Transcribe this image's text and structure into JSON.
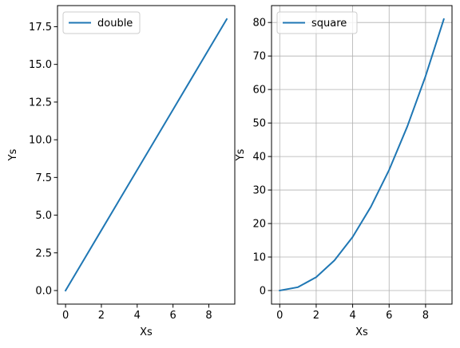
{
  "chart_data": [
    {
      "type": "line",
      "xlabel": "Xs",
      "ylabel": "Ys",
      "x": [
        0,
        1,
        2,
        3,
        4,
        5,
        6,
        7,
        8,
        9
      ],
      "series": [
        {
          "name": "double",
          "values": [
            0,
            2,
            4,
            6,
            8,
            10,
            12,
            14,
            16,
            18
          ],
          "color": "#1f77b4"
        }
      ],
      "xlim": [
        -0.45,
        9.45
      ],
      "ylim": [
        -0.9,
        18.9
      ],
      "xticks": [
        0,
        2,
        4,
        6,
        8
      ],
      "yticks": [
        0.0,
        2.5,
        5.0,
        7.5,
        10.0,
        12.5,
        15.0,
        17.5
      ],
      "ytick_labels": [
        "0.0",
        "2.5",
        "5.0",
        "7.5",
        "10.0",
        "12.5",
        "15.0",
        "17.5"
      ],
      "grid": false,
      "legend": "upper-left"
    },
    {
      "type": "line",
      "xlabel": "Xs",
      "ylabel": "Ys",
      "x": [
        0,
        1,
        2,
        3,
        4,
        5,
        6,
        7,
        8,
        9
      ],
      "series": [
        {
          "name": "square",
          "values": [
            0,
            1,
            4,
            9,
            16,
            25,
            36,
            49,
            64,
            81
          ],
          "color": "#1f77b4"
        }
      ],
      "xlim": [
        -0.45,
        9.45
      ],
      "ylim": [
        -4.05,
        85.05
      ],
      "xticks": [
        0,
        2,
        4,
        6,
        8
      ],
      "yticks": [
        0,
        10,
        20,
        30,
        40,
        50,
        60,
        70,
        80
      ],
      "ytick_labels": [
        "0",
        "10",
        "20",
        "30",
        "40",
        "50",
        "60",
        "70",
        "80"
      ],
      "grid": true,
      "legend": "upper-left"
    }
  ]
}
